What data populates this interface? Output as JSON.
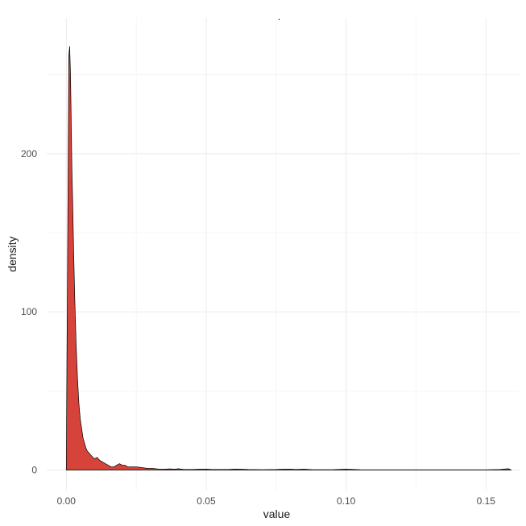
{
  "chart_data": {
    "type": "area",
    "title": ".",
    "xlabel": "value",
    "ylabel": "density",
    "xlim": [
      -0.007,
      0.162
    ],
    "ylim": [
      -13,
      286
    ],
    "x_ticks": [
      0.0,
      0.05,
      0.1,
      0.15
    ],
    "x_tick_labels": [
      "0.00",
      "0.05",
      "0.10",
      "0.15"
    ],
    "x_minor_ticks": [
      0.025,
      0.075,
      0.125
    ],
    "y_ticks": [
      0,
      100,
      200
    ],
    "y_tick_labels": [
      "0",
      "100",
      "200"
    ],
    "y_minor_ticks": [
      50,
      150,
      250
    ],
    "grid": true,
    "fill_color": "#d6433b",
    "line_color": "#000000",
    "series": [
      {
        "x": [
          0.0,
          0.0003,
          0.0006,
          0.0009,
          0.0012,
          0.0015,
          0.0018,
          0.002,
          0.0023,
          0.0026,
          0.003,
          0.0035,
          0.004,
          0.0045,
          0.005,
          0.0055,
          0.006,
          0.0065,
          0.007,
          0.0075,
          0.008,
          0.009,
          0.01,
          0.011,
          0.012,
          0.013,
          0.014,
          0.015,
          0.016,
          0.017,
          0.018,
          0.019,
          0.02,
          0.021,
          0.022,
          0.023,
          0.025,
          0.027,
          0.029,
          0.031,
          0.033,
          0.035,
          0.037,
          0.039,
          0.04,
          0.042,
          0.045,
          0.048,
          0.05,
          0.052,
          0.055,
          0.058,
          0.06,
          0.062,
          0.065,
          0.07,
          0.075,
          0.078,
          0.08,
          0.082,
          0.085,
          0.088,
          0.09,
          0.095,
          0.1,
          0.105,
          0.11,
          0.12,
          0.13,
          0.14,
          0.15,
          0.155,
          0.158,
          0.159
        ],
        "y": [
          0,
          90,
          175,
          262,
          268,
          250,
          215,
          190,
          168,
          140,
          110,
          80,
          58,
          42,
          32,
          26,
          20,
          17,
          14,
          12,
          11,
          9,
          7,
          8,
          6,
          5,
          4,
          3,
          2,
          2,
          3,
          4,
          3,
          3,
          2,
          2,
          2,
          1.5,
          1,
          1,
          0.6,
          0.5,
          0.7,
          0.5,
          0.8,
          0.3,
          0.3,
          0.5,
          0.6,
          0.3,
          0.3,
          0.3,
          0.6,
          0.5,
          0.3,
          0.2,
          0.3,
          0.6,
          0.6,
          0.3,
          0.5,
          0.2,
          0.2,
          0.2,
          0.5,
          0.2,
          0.1,
          0.1,
          0.1,
          0.1,
          0.1,
          0.3,
          0.8,
          0
        ]
      }
    ]
  }
}
